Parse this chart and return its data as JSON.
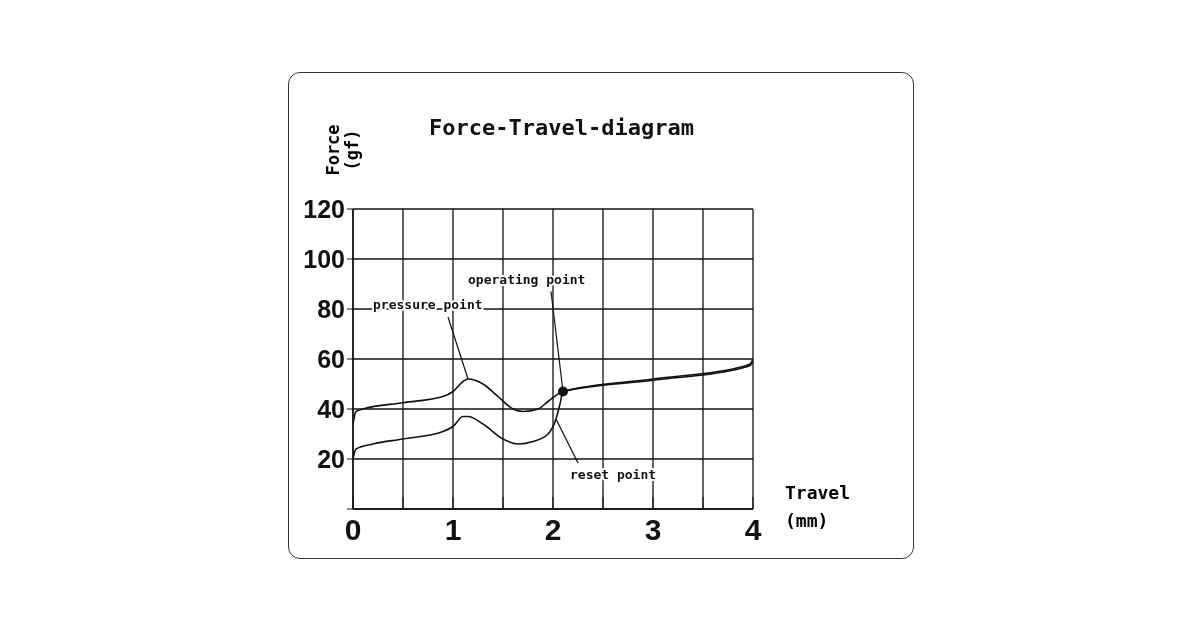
{
  "chart_data": {
    "type": "line",
    "title": "Force-Travel-diagram",
    "xlabel": "Travel (mm)",
    "ylabel": "Force (gf)",
    "series": [
      {
        "color": "#111111",
        "x": [
          0,
          0.03,
          0.1,
          0.5,
          0.9,
          1.0,
          1.1,
          1.15,
          1.3,
          1.45,
          1.6,
          1.7,
          1.85,
          1.95,
          2.1,
          3.0,
          3.9,
          3.97,
          4.0
        ],
        "values": [
          34,
          39,
          40,
          42.5,
          45,
          47,
          51,
          52,
          50,
          45,
          40,
          39,
          40,
          43,
          47,
          52,
          57,
          58,
          60
        ]
      },
      {
        "color": "#111111",
        "x": [
          0,
          0.03,
          0.2,
          0.5,
          0.9,
          1.0,
          1.1,
          1.15,
          1.3,
          1.5,
          1.65,
          1.8,
          1.95,
          2.03,
          2.07,
          2.1,
          3.0,
          3.9,
          3.97,
          4.0
        ],
        "values": [
          20,
          24,
          26,
          28,
          31,
          33,
          37,
          37,
          34,
          28,
          26,
          27,
          30,
          36,
          42,
          47,
          51.5,
          56.5,
          57.5,
          59
        ]
      }
    ],
    "xlim": [
      0,
      4
    ],
    "xticks": [
      0,
      {
        "value": 0.5,
        "label": null
      },
      1,
      {
        "value": 1.5,
        "label": null
      },
      2,
      {
        "value": 2.5,
        "label": null
      },
      3,
      {
        "value": 3.5,
        "label": null
      },
      4
    ],
    "ylim": [
      0,
      120
    ],
    "yticks": [
      {
        "value": 0,
        "label": null
      },
      20,
      40,
      60,
      80,
      100,
      120
    ],
    "grid": true,
    "marker": "none",
    "line_style": "solid",
    "annotations": [
      {
        "text": "pressure point",
        "x": 1.15,
        "y": 52
      },
      {
        "text": "operating point",
        "x": 2.1,
        "y": 47
      },
      {
        "text": "reset point",
        "x": 2.03,
        "y": 36
      }
    ]
  }
}
